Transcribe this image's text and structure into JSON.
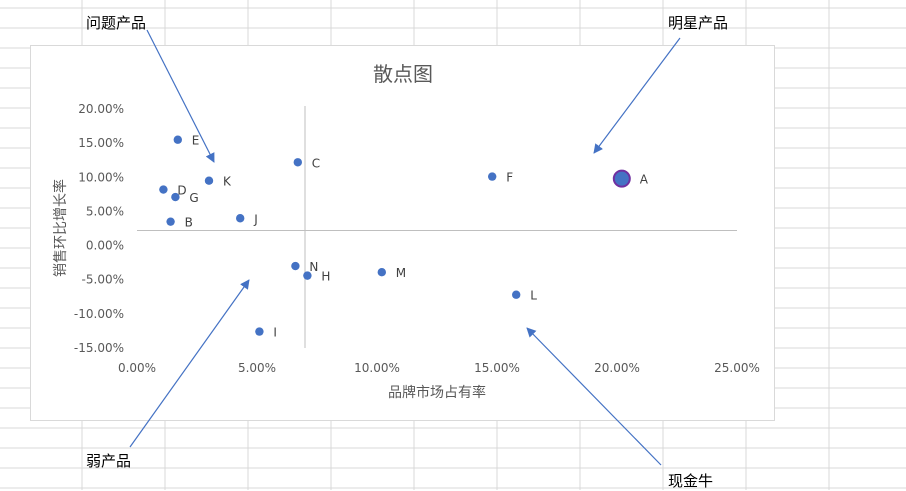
{
  "callouts": {
    "problem": "问题产品",
    "star": "明星产品",
    "weak": "弱产品",
    "cash_cow": "现金牛"
  },
  "colors": {
    "point": "#4472c4",
    "highlight_fill": "#4472c4",
    "highlight_stroke": "#7030a0",
    "quadrant_line": "#bfbfbf",
    "axis_text": "#595959",
    "arrow": "#4472c4",
    "grid": "#d9d9d9"
  },
  "chart_data": {
    "type": "scatter",
    "title": "散点图",
    "xlabel": "品牌市场占有率",
    "ylabel": "销售环比增长率",
    "xlim": [
      0,
      0.25
    ],
    "ylim": [
      -0.15,
      0.2
    ],
    "x_ticks": [
      0,
      0.05,
      0.1,
      0.15,
      0.2,
      0.25
    ],
    "x_tick_labels": [
      "0.00%",
      "5.00%",
      "10.00%",
      "15.00%",
      "20.00%",
      "25.00%"
    ],
    "y_ticks": [
      0.2,
      0.15,
      0.1,
      0.05,
      0,
      -0.05,
      -0.1,
      -0.15
    ],
    "y_tick_labels": [
      "20.00%",
      "15.00%",
      "10.00%",
      "5.00%",
      "0.00%",
      "-5.00%",
      "-10.00%",
      "-15.00%"
    ],
    "quadrant_lines": {
      "x": 0.07,
      "y": 0.022
    },
    "highlighted_point": "A",
    "points": [
      {
        "label": "A",
        "x": 0.202,
        "y": 0.098
      },
      {
        "label": "B",
        "x": 0.014,
        "y": 0.035
      },
      {
        "label": "C",
        "x": 0.067,
        "y": 0.122
      },
      {
        "label": "D",
        "x": 0.011,
        "y": 0.082
      },
      {
        "label": "E",
        "x": 0.017,
        "y": 0.155
      },
      {
        "label": "F",
        "x": 0.148,
        "y": 0.101
      },
      {
        "label": "G",
        "x": 0.016,
        "y": 0.071
      },
      {
        "label": "H",
        "x": 0.071,
        "y": -0.044
      },
      {
        "label": "I",
        "x": 0.051,
        "y": -0.126
      },
      {
        "label": "J",
        "x": 0.043,
        "y": 0.04
      },
      {
        "label": "K",
        "x": 0.03,
        "y": 0.095
      },
      {
        "label": "L",
        "x": 0.158,
        "y": -0.072
      },
      {
        "label": "M",
        "x": 0.102,
        "y": -0.039
      },
      {
        "label": "N",
        "x": 0.066,
        "y": -0.03
      }
    ]
  }
}
